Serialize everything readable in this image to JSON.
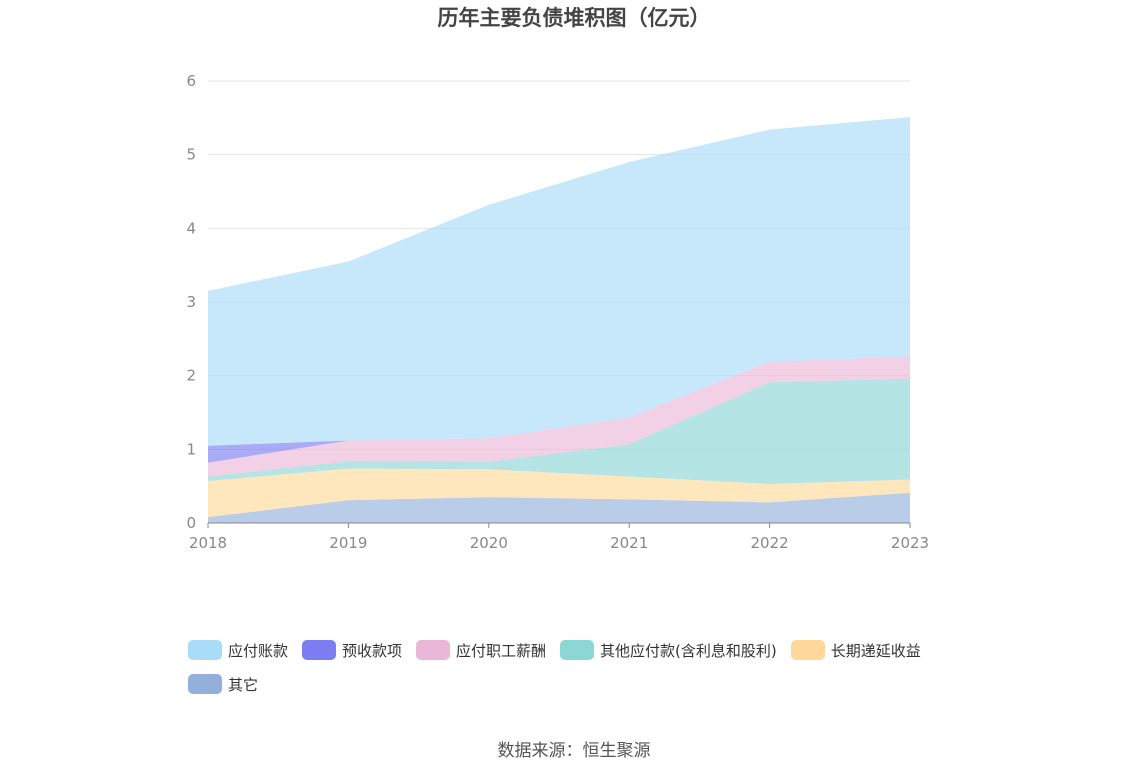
{
  "title": "历年主要负债堆积图（亿元）",
  "source": "数据来源：恒生聚源",
  "chart_data": {
    "type": "area",
    "stacked": true,
    "title": "历年主要负债堆积图（亿元）",
    "x": [
      "2018",
      "2019",
      "2020",
      "2021",
      "2022",
      "2023"
    ],
    "ylim": [
      0,
      6
    ],
    "yticks": [
      0,
      1,
      2,
      3,
      4,
      5,
      6
    ],
    "grid": true,
    "legend_position": "bottom",
    "series": [
      {
        "name": "其它",
        "color": "#93b0dc",
        "values": [
          0.08,
          0.31,
          0.35,
          0.32,
          0.28,
          0.41
        ]
      },
      {
        "name": "长期递延收益",
        "color": "#fdd89a",
        "values": [
          0.49,
          0.43,
          0.38,
          0.31,
          0.25,
          0.18
        ]
      },
      {
        "name": "其他应付款(含利息和股利)",
        "color": "#8cd6d6",
        "values": [
          0.06,
          0.1,
          0.1,
          0.44,
          1.38,
          1.37
        ]
      },
      {
        "name": "应付职工薪酬",
        "color": "#ebb7d9",
        "values": [
          0.19,
          0.28,
          0.32,
          0.36,
          0.28,
          0.3
        ]
      },
      {
        "name": "预收款项",
        "color": "#7b7ef0",
        "values": [
          0.23,
          0.0,
          0.0,
          0.0,
          0.0,
          0.0
        ]
      },
      {
        "name": "应付账款",
        "color": "#a8dcf7",
        "values": [
          2.1,
          2.43,
          3.17,
          3.47,
          3.15,
          3.25
        ]
      }
    ],
    "legend_order": [
      "应付账款",
      "预收款项",
      "应付职工薪酬",
      "其他应付款(含利息和股利)",
      "长期递延收益",
      "其它"
    ]
  }
}
